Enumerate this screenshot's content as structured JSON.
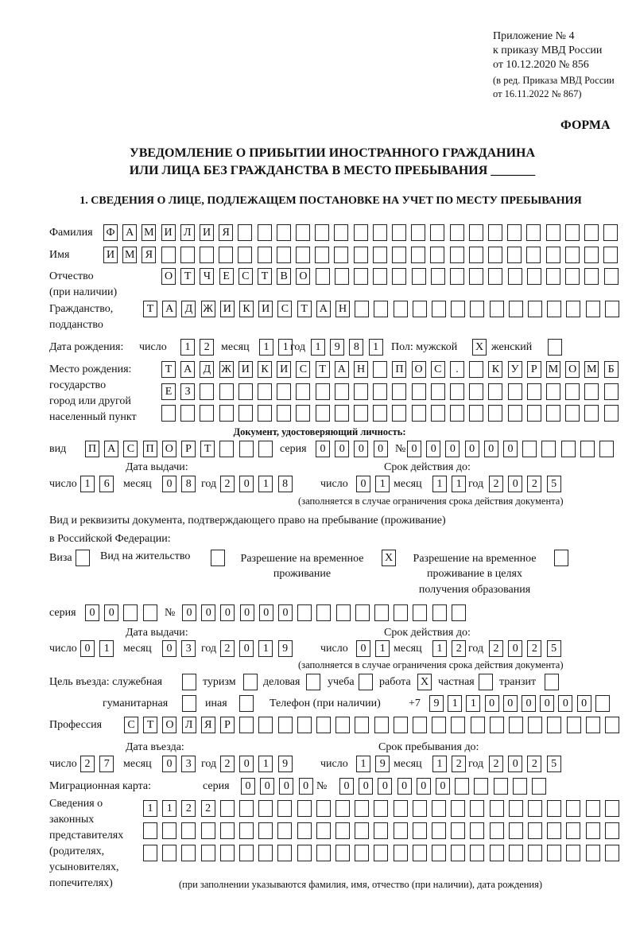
{
  "header": {
    "appendix": "Приложение № 4",
    "order": "к приказу МВД России",
    "order_date": "от 10.12.2020 № 856",
    "edition": "(в ред. Приказа МВД России",
    "edition_date": "от 16.11.2022 № 867)",
    "form_label": "ФОРМА",
    "title_line1": "УВЕДОМЛЕНИЕ О ПРИБЫТИИ ИНОСТРАННОГО ГРАЖДАНИНА",
    "title_line2": "ИЛИ ЛИЦА БЕЗ ГРАЖДАНСТВА В МЕСТО ПРЕБЫВАНИЯ _______",
    "section1": "1. СВЕДЕНИЯ О ЛИЦЕ, ПОДЛЕЖАЩЕМ ПОСТАНОВКЕ НА УЧЕТ ПО МЕСТУ ПРЕБЫВАНИЯ"
  },
  "labels": {
    "surname": "Фамилия",
    "name": "Имя",
    "patronymic": "Отчество",
    "patronymic_note": "(при наличии)",
    "citizenship": "Гражданство,",
    "citizenship2": "подданство",
    "birth_date": "Дата рождения:",
    "day": "число",
    "month": "месяц",
    "year": "год",
    "sex_male": "Пол: мужской",
    "sex_female": "женский",
    "birth_place": "Место рождения:",
    "birth_state": "государство",
    "birth_city": "город или другой",
    "birth_settlement": "населенный пункт",
    "id_doc": "Документ, удостоверяющий личность:",
    "kind": "вид",
    "series": "серия",
    "number": "№",
    "issue_date": "Дата выдачи:",
    "valid_until": "Срок действия до:",
    "valid_note": "(заполняется в случае ограничения срока действия документа)",
    "right_doc1": "Вид и реквизиты документа, подтверждающего право на пребывание (проживание)",
    "right_doc2": "в Российской Федерации:",
    "visa": "Виза",
    "residence": "Вид на жительство",
    "trp1": "Разрешение на временное",
    "trp2": "проживание",
    "trp_edu1": "Разрешение на временное",
    "trp_edu2": "проживание в целях",
    "trp_edu3": "получения образования",
    "purpose": "Цель въезда: служебная",
    "tourism": "туризм",
    "business": "деловая",
    "study": "учеба",
    "work": "работа",
    "private": "частная",
    "transit": "транзит",
    "humanitarian": "гуманитарная",
    "other": "иная",
    "phone": "Телефон (при наличии)",
    "phone_prefix": "+7",
    "profession": "Профессия",
    "entry_date": "Дата въезда:",
    "stay_until": "Срок пребывания до:",
    "migration_card": "Миграционная карта:",
    "reps1": "Сведения о",
    "reps2": "законных",
    "reps3": "представителях",
    "reps4": "(родителях,",
    "reps5": "усыновителях,",
    "reps6": "попечителях)",
    "reps_note": "(при заполнении указываются фамилия, имя, отчество (при наличии), дата рождения)"
  },
  "values": {
    "surname": "ФАМИЛИЯ",
    "name": "ИМЯ",
    "patronymic": "ОТЧЕСТВО",
    "citizenship": "ТАДЖИКИСТАН",
    "birth_day": "12",
    "birth_month": "11",
    "birth_year": "1981",
    "sex_male": "X",
    "sex_female": "",
    "birth_place_1": "ТАДЖИКИСТАН ПОС. КУРМОМБ",
    "birth_place_2": "ЕЗ",
    "birth_place_3": "",
    "doc_kind": "ПАСПОРТ",
    "doc_series": "0000",
    "doc_number": "000000",
    "doc_issue_day": "16",
    "doc_issue_month": "08",
    "doc_issue_year": "2018",
    "doc_valid_day": "01",
    "doc_valid_month": "11",
    "doc_valid_year": "2025",
    "visa": "",
    "residence": "",
    "trp": "X",
    "trp_edu": "",
    "right_series": "00",
    "right_number": "000000",
    "right_issue_day": "01",
    "right_issue_month": "03",
    "right_issue_year": "2019",
    "right_valid_day": "01",
    "right_valid_month": "12",
    "right_valid_year": "2025",
    "purpose_official": "",
    "purpose_tourism": "",
    "purpose_business": "",
    "purpose_study": "",
    "purpose_work": "X",
    "purpose_private": "",
    "purpose_transit": "",
    "purpose_humanitarian": "",
    "purpose_other": "",
    "phone": "911000000",
    "profession": "СТОЛЯР",
    "entry_day": "27",
    "entry_month": "03",
    "entry_year": "2019",
    "stay_day": "19",
    "stay_month": "12",
    "stay_year": "2025",
    "mc_series": "0000",
    "mc_number": "000000",
    "reps_1": "1122",
    "reps_2": "",
    "reps_3": ""
  }
}
